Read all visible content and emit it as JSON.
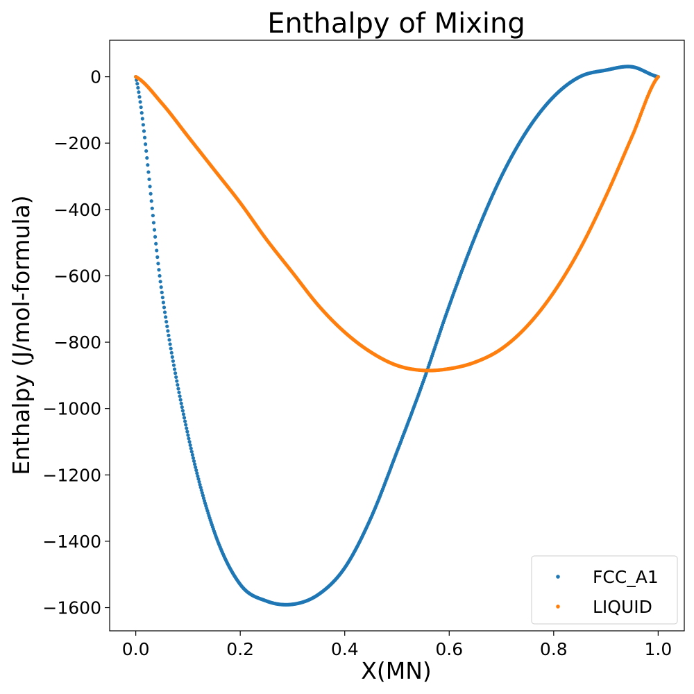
{
  "chart_data": {
    "type": "scatter",
    "title": "Enthalpy of Mixing",
    "xlabel": "X(MN)",
    "ylabel": "Enthalpy (J/mol-formula)",
    "xlim": [
      -0.05,
      1.05
    ],
    "ylim": [
      -1670,
      110
    ],
    "xticks": [
      0.0,
      0.2,
      0.4,
      0.6,
      0.8,
      1.0
    ],
    "xtick_labels": [
      "0.0",
      "0.2",
      "0.4",
      "0.6",
      "0.8",
      "1.0"
    ],
    "yticks": [
      0,
      -200,
      -400,
      -600,
      -800,
      -1000,
      -1200,
      -1400,
      -1600
    ],
    "ytick_labels": [
      "0",
      "−200",
      "−400",
      "−600",
      "−800",
      "−1000",
      "−1200",
      "−1400",
      "−1600"
    ],
    "grid": false,
    "legend_position": "bottom-right",
    "x": [
      0.0,
      0.05,
      0.1,
      0.15,
      0.2,
      0.25,
      0.3,
      0.35,
      0.4,
      0.45,
      0.5,
      0.55,
      0.6,
      0.65,
      0.7,
      0.75,
      0.8,
      0.85,
      0.9,
      0.95,
      1.0
    ],
    "series": [
      {
        "name": "FCC_A1",
        "color": "#1f77b4",
        "values": [
          0,
          -650,
          -1080,
          -1370,
          -1530,
          -1580,
          -1590,
          -1560,
          -1480,
          -1330,
          -1130,
          -920,
          -690,
          -480,
          -300,
          -160,
          -60,
          0,
          20,
          30,
          0
        ]
      },
      {
        "name": "LIQUID",
        "color": "#ff7f0e",
        "values": [
          0,
          -80,
          -180,
          -280,
          -380,
          -490,
          -590,
          -690,
          -770,
          -830,
          -870,
          -885,
          -880,
          -860,
          -820,
          -750,
          -650,
          -520,
          -360,
          -180,
          0
        ]
      }
    ]
  }
}
